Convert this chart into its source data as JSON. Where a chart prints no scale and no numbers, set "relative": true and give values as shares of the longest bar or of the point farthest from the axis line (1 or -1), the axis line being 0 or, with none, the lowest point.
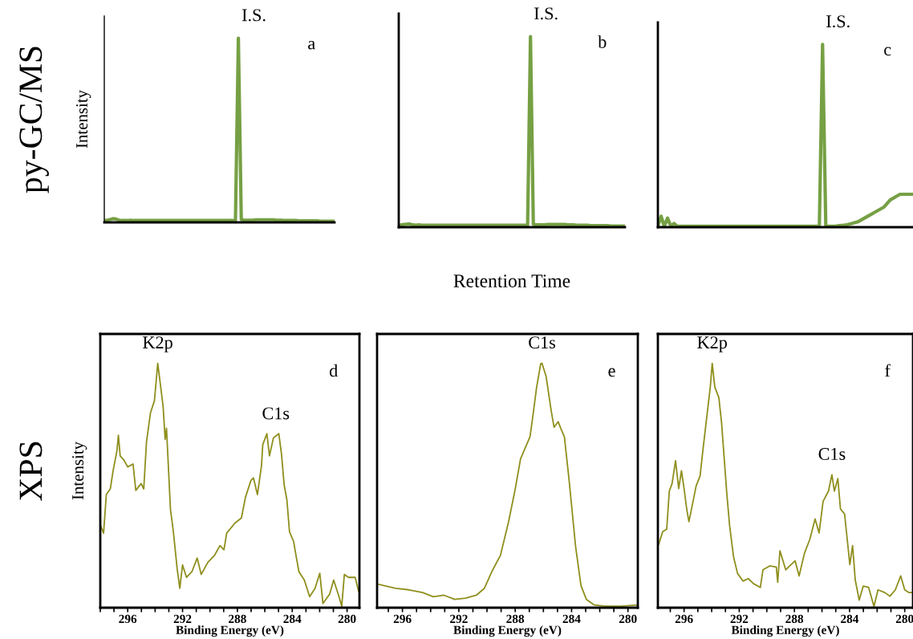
{
  "chart_data": [
    {
      "type": "line",
      "title": "py-GC/MS",
      "ylabel": "Intensity",
      "relative": true,
      "annotations": [
        "I.S.",
        "a"
      ],
      "categories": [
        null,
        null,
        null,
        null,
        null,
        null,
        null,
        null,
        null,
        null,
        null,
        null,
        null,
        null,
        null,
        null,
        null,
        null,
        null,
        null,
        null,
        null,
        null,
        null,
        null,
        null,
        null,
        null,
        null,
        null,
        null,
        null,
        null,
        null,
        null,
        null,
        null,
        null,
        null,
        null,
        null,
        null,
        null,
        null,
        null,
        null,
        null,
        null,
        null,
        null,
        null,
        null,
        null,
        null,
        null,
        null,
        null,
        null,
        null,
        null,
        null,
        null,
        null,
        null,
        null,
        null,
        null,
        null,
        null,
        null,
        null,
        null,
        null,
        null,
        null,
        null,
        null,
        null,
        null,
        null
      ],
      "series": [
        {
          "color": "#76a044",
          "values": [
            0.01,
            0.012,
            0.015,
            0.02,
            0.018,
            0.012,
            0.01,
            0.01,
            0.01,
            0.012,
            0.01,
            0.01,
            0.01,
            0.01,
            0.01,
            0.01,
            0.01,
            0.01,
            0.01,
            0.01,
            0.01,
            0.01,
            0.01,
            0.01,
            0.01,
            0.01,
            0.01,
            0.01,
            0.01,
            0.01,
            0.01,
            0.01,
            0.01,
            0.01,
            0.01,
            0.01,
            0.01,
            0.01,
            0.01,
            0.01,
            0.01,
            0.01,
            0.01,
            0.01,
            0.01,
            0.012,
            1.0,
            0.015,
            0.012,
            0.012,
            0.012,
            0.012,
            0.014,
            0.014,
            0.014,
            0.014,
            0.014,
            0.014,
            0.014,
            0.012,
            0.012,
            0.012,
            0.01,
            0.01,
            0.01,
            0.01,
            0.01,
            0.008,
            0.008,
            0.008,
            0.008,
            0.008,
            0.008,
            0.008,
            0.006,
            0.006,
            0.006,
            0.006,
            0.006,
            0.006
          ]
        }
      ]
    },
    {
      "type": "line",
      "xlabel": "Retention Time",
      "relative": true,
      "annotations": [
        "I.S.",
        "b"
      ],
      "categories": [
        null,
        null,
        null,
        null,
        null,
        null,
        null,
        null,
        null,
        null,
        null,
        null,
        null,
        null,
        null,
        null,
        null,
        null,
        null,
        null,
        null,
        null,
        null,
        null,
        null,
        null,
        null,
        null,
        null,
        null,
        null,
        null,
        null,
        null,
        null,
        null,
        null,
        null,
        null,
        null,
        null,
        null,
        null,
        null,
        null,
        null,
        null,
        null,
        null,
        null,
        null,
        null,
        null,
        null,
        null,
        null,
        null,
        null,
        null,
        null,
        null,
        null,
        null,
        null,
        null,
        null,
        null,
        null,
        null,
        null,
        null,
        null,
        null,
        null,
        null,
        null,
        null,
        null,
        null,
        null
      ],
      "series": [
        {
          "color": "#76a044",
          "values": [
            0.01,
            0.012,
            0.014,
            0.016,
            0.016,
            0.012,
            0.01,
            0.012,
            0.01,
            0.01,
            0.01,
            0.01,
            0.01,
            0.01,
            0.01,
            0.01,
            0.01,
            0.01,
            0.01,
            0.01,
            0.01,
            0.01,
            0.01,
            0.01,
            0.01,
            0.01,
            0.01,
            0.01,
            0.01,
            0.01,
            0.01,
            0.01,
            0.01,
            0.01,
            0.01,
            0.01,
            0.01,
            0.01,
            0.01,
            0.01,
            0.01,
            0.01,
            0.01,
            0.01,
            0.01,
            0.012,
            1.0,
            0.015,
            0.012,
            0.012,
            0.012,
            0.012,
            0.014,
            0.014,
            0.014,
            0.014,
            0.014,
            0.014,
            0.014,
            0.012,
            0.012,
            0.012,
            0.01,
            0.01,
            0.01,
            0.01,
            0.01,
            0.008,
            0.008,
            0.008,
            0.008,
            0.008,
            0.008,
            0.008,
            0.006,
            0.006,
            0.006,
            0.006,
            0.006,
            0.006
          ]
        }
      ]
    },
    {
      "type": "line",
      "relative": true,
      "annotations": [
        "I.S.",
        "c"
      ],
      "categories": [
        null,
        null,
        null,
        null,
        null,
        null,
        null,
        null,
        null,
        null,
        null,
        null,
        null,
        null,
        null,
        null,
        null,
        null,
        null,
        null,
        null,
        null,
        null,
        null,
        null,
        null,
        null,
        null,
        null,
        null,
        null,
        null,
        null,
        null,
        null,
        null,
        null,
        null,
        null,
        null,
        null,
        null,
        null,
        null,
        null,
        null,
        null,
        null,
        null,
        null,
        null,
        null,
        null,
        null,
        null,
        null,
        null,
        null,
        null,
        null,
        null,
        null,
        null,
        null,
        null,
        null,
        null,
        null,
        null,
        null,
        null,
        null,
        null,
        null,
        null,
        null,
        null,
        null,
        null,
        null
      ],
      "series": [
        {
          "color": "#76a044",
          "values": [
            0.005,
            0.06,
            0.005,
            0.05,
            0.005,
            0.02,
            0.005,
            0.005,
            0.005,
            0.005,
            0.005,
            0.005,
            0.005,
            0.005,
            0.005,
            0.005,
            0.005,
            0.005,
            0.005,
            0.005,
            0.005,
            0.005,
            0.005,
            0.005,
            0.005,
            0.005,
            0.005,
            0.005,
            0.005,
            0.005,
            0.005,
            0.005,
            0.005,
            0.005,
            0.005,
            0.005,
            0.005,
            0.005,
            0.005,
            0.005,
            0.005,
            0.005,
            0.005,
            0.005,
            0.005,
            0.005,
            0.005,
            0.005,
            0.005,
            0.005,
            0.005,
            1.0,
            0.005,
            0.005,
            0.005,
            0.005,
            0.008,
            0.01,
            0.012,
            0.015,
            0.02,
            0.025,
            0.03,
            0.04,
            0.05,
            0.06,
            0.07,
            0.08,
            0.09,
            0.1,
            0.11,
            0.13,
            0.15,
            0.16,
            0.17,
            0.18,
            0.18,
            0.18,
            0.18,
            0.18
          ]
        }
      ]
    },
    {
      "type": "line",
      "title": "XPS",
      "xlabel": "Binding Energy (eV)",
      "ylabel": "Intensity",
      "relative": true,
      "xlim": [
        298.0,
        279.1
      ],
      "xticks": [
        {
          "value": 298,
          "label": null
        },
        {
          "value": 297,
          "label": null
        },
        296,
        {
          "value": 295,
          "label": null
        },
        {
          "value": 294,
          "label": null
        },
        {
          "value": 293,
          "label": null
        },
        292,
        {
          "value": 291,
          "label": null
        },
        {
          "value": 290,
          "label": null
        },
        {
          "value": 289,
          "label": null
        },
        288,
        {
          "value": 287,
          "label": null
        },
        {
          "value": 286,
          "label": null
        },
        {
          "value": 285,
          "label": null
        },
        284,
        {
          "value": 283,
          "label": null
        },
        {
          "value": 282,
          "label": null
        },
        {
          "value": 281,
          "label": null
        },
        280
      ],
      "annotations": [
        {
          "text": "K2p",
          "x": 293.81,
          "y": 1.0
        },
        {
          "text": "C1s",
          "x": 285.2,
          "y": 0.71
        },
        "d"
      ],
      "series": [
        {
          "color": "#8f8f1e",
          "x": [
            298.0,
            297.76,
            297.56,
            297.27,
            297.07,
            296.78,
            296.68,
            296.55,
            296.29,
            296.0,
            295.61,
            295.41,
            295.02,
            294.83,
            294.63,
            294.34,
            294.05,
            293.81,
            293.62,
            293.42,
            293.27,
            293.17,
            292.88,
            292.68,
            292.39,
            292.2,
            292.0,
            291.71,
            291.32,
            290.93,
            290.64,
            290.15,
            289.66,
            289.27,
            288.98,
            288.78,
            288.2,
            287.71,
            287.41,
            287.02,
            286.83,
            286.54,
            286.24,
            286.15,
            285.85,
            285.66,
            285.37,
            284.98,
            284.78,
            284.59,
            284.39,
            284.2,
            283.9,
            283.71,
            283.51,
            283.12,
            282.73,
            282.34,
            281.99,
            281.76,
            281.27,
            280.98,
            280.59,
            280.39,
            280.2,
            279.9,
            279.41,
            279.16
          ],
          "values": [
            0.339,
            0.305,
            0.463,
            0.486,
            0.559,
            0.644,
            0.706,
            0.621,
            0.605,
            0.576,
            0.588,
            0.48,
            0.508,
            0.486,
            0.678,
            0.797,
            0.847,
            1.0,
            0.915,
            0.825,
            0.689,
            0.734,
            0.401,
            0.316,
            0.158,
            0.079,
            0.175,
            0.124,
            0.147,
            0.203,
            0.136,
            0.186,
            0.215,
            0.254,
            0.237,
            0.305,
            0.345,
            0.367,
            0.452,
            0.52,
            0.531,
            0.463,
            0.582,
            0.667,
            0.712,
            0.621,
            0.695,
            0.712,
            0.627,
            0.503,
            0.441,
            0.311,
            0.271,
            0.209,
            0.147,
            0.113,
            0.045,
            0.079,
            0.141,
            0.017,
            0.056,
            0.113,
            0.045,
            0.006,
            0.136,
            0.124,
            0.124,
            0.068
          ]
        }
      ]
    },
    {
      "type": "line",
      "xlabel": "Binding Energy (eV)",
      "relative": true,
      "xlim": [
        297.8,
        279.3
      ],
      "xticks": [
        {
          "value": 297,
          "label": null
        },
        296,
        {
          "value": 295,
          "label": null
        },
        {
          "value": 294,
          "label": null
        },
        {
          "value": 293,
          "label": null
        },
        292,
        {
          "value": 291,
          "label": null
        },
        {
          "value": 290,
          "label": null
        },
        {
          "value": 289,
          "label": null
        },
        288,
        {
          "value": 287,
          "label": null
        },
        {
          "value": 286,
          "label": null
        },
        {
          "value": 285,
          "label": null
        },
        284,
        {
          "value": 283,
          "label": null
        },
        {
          "value": 282,
          "label": null
        },
        {
          "value": 281,
          "label": null
        },
        280
      ],
      "annotations": [
        {
          "text": "C1s",
          "x": 286.1,
          "y": 1.0
        },
        "e"
      ],
      "series": [
        {
          "color": "#8f8f1e",
          "x": [
            297.71,
            296.48,
            295.52,
            294.57,
            293.81,
            293.05,
            292.29,
            291.52,
            290.76,
            290.19,
            289.62,
            289.05,
            288.48,
            288.0,
            287.62,
            287.33,
            286.95,
            286.76,
            286.48,
            286.19,
            286.1,
            285.81,
            285.43,
            285.24,
            284.95,
            284.76,
            284.51,
            284.19,
            283.71,
            283.33,
            282.95,
            282.38,
            281.62,
            280.48,
            279.33
          ],
          "values": [
            0.096,
            0.079,
            0.073,
            0.062,
            0.045,
            0.051,
            0.034,
            0.039,
            0.051,
            0.079,
            0.152,
            0.214,
            0.349,
            0.485,
            0.609,
            0.648,
            0.699,
            0.778,
            0.902,
            0.998,
            1.0,
            0.947,
            0.8,
            0.738,
            0.761,
            0.733,
            0.699,
            0.53,
            0.248,
            0.09,
            0.034,
            0.011,
            0.006,
            0.006,
            0.011
          ]
        }
      ]
    },
    {
      "type": "line",
      "xlabel": "Binding Energy (eV)",
      "relative": true,
      "xlim": [
        297.9,
        279.4
      ],
      "xticks": [
        {
          "value": 297,
          "label": null
        },
        296,
        {
          "value": 295,
          "label": null
        },
        {
          "value": 294,
          "label": null
        },
        {
          "value": 293,
          "label": null
        },
        292,
        {
          "value": 291,
          "label": null
        },
        {
          "value": 290,
          "label": null
        },
        {
          "value": 289,
          "label": null
        },
        288,
        {
          "value": 287,
          "label": null
        },
        {
          "value": 286,
          "label": null
        },
        {
          "value": 285,
          "label": null
        },
        284,
        {
          "value": 283,
          "label": null
        },
        {
          "value": 282,
          "label": null
        },
        {
          "value": 281,
          "label": null
        },
        280
      ],
      "annotations": [
        {
          "text": "K2p",
          "x": 293.96,
          "y": 1.0
        },
        {
          "text": "C1s",
          "x": 285.28,
          "y": 0.544
        },
        "f"
      ],
      "series": [
        {
          "color": "#8f8f1e",
          "x": [
            297.84,
            297.55,
            297.26,
            297.07,
            296.87,
            296.62,
            296.39,
            296.19,
            296.0,
            295.81,
            295.65,
            295.42,
            295.13,
            294.84,
            294.64,
            294.35,
            294.1,
            293.96,
            293.77,
            293.48,
            293.28,
            292.9,
            292.7,
            292.41,
            292.12,
            291.73,
            291.35,
            290.96,
            290.47,
            290.28,
            289.79,
            289.31,
            289.21,
            289.05,
            288.63,
            288.34,
            287.95,
            287.66,
            287.27,
            286.88,
            286.5,
            286.21,
            285.92,
            285.53,
            285.28,
            285.1,
            284.85,
            284.66,
            284.36,
            284.17,
            283.98,
            283.78,
            283.59,
            283.3,
            283.01,
            282.62,
            282.23,
            281.94,
            281.45,
            281.07,
            280.68,
            280.29,
            280.0,
            279.71,
            279.44
          ],
          "values": [
            0.259,
            0.311,
            0.321,
            0.477,
            0.508,
            0.601,
            0.487,
            0.56,
            0.487,
            0.404,
            0.352,
            0.415,
            0.497,
            0.539,
            0.642,
            0.782,
            0.902,
            1.0,
            0.902,
            0.86,
            0.756,
            0.466,
            0.337,
            0.207,
            0.14,
            0.109,
            0.119,
            0.098,
            0.083,
            0.155,
            0.171,
            0.166,
            0.104,
            0.233,
            0.155,
            0.171,
            0.192,
            0.13,
            0.223,
            0.28,
            0.363,
            0.306,
            0.435,
            0.477,
            0.544,
            0.477,
            0.528,
            0.404,
            0.383,
            0.28,
            0.176,
            0.254,
            0.114,
            0.031,
            0.088,
            0.083,
            0.005,
            0.073,
            0.062,
            0.047,
            0.073,
            0.13,
            0.073,
            0.062,
            0.062
          ]
        }
      ]
    }
  ]
}
